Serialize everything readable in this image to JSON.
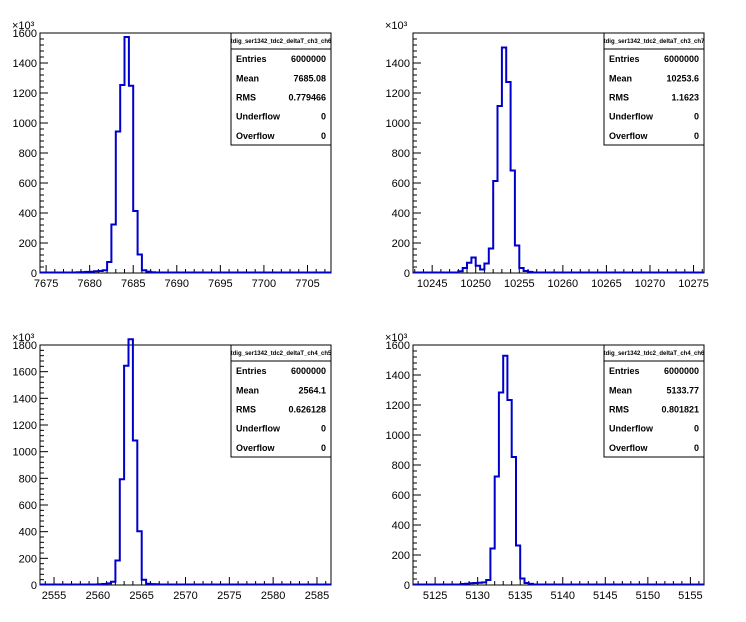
{
  "colors": {
    "line": "#0000cc",
    "axis": "#000000",
    "background": "#ffffff"
  },
  "chart_data": [
    {
      "type": "step-histogram",
      "exponent_label": "×10³",
      "stats_box": {
        "title": "tdig_ser1342_tdc2_deltaT_ch3_ch6",
        "rows": [
          {
            "label": "Entries",
            "value": "6000000"
          },
          {
            "label": "Mean",
            "value": "7685.08"
          },
          {
            "label": "RMS",
            "value": "0.779466"
          },
          {
            "label": "Underflow",
            "value": "0"
          },
          {
            "label": "Overflow",
            "value": "0"
          }
        ]
      },
      "xlim": [
        7674.3,
        7707.7
      ],
      "ylim": [
        0,
        1600
      ],
      "x_ticks": [
        7675,
        7680,
        7685,
        7690,
        7695,
        7700,
        7705
      ],
      "y_ticks": [
        0,
        200,
        400,
        600,
        800,
        1000,
        1200,
        1400,
        1600
      ],
      "x_minor_step": 1,
      "y_minor_step": 40,
      "bin_edges": [
        7678.5,
        7679.0,
        7679.5,
        7680.0,
        7680.5,
        7681.0,
        7681.5,
        7682.0,
        7682.5,
        7683.0,
        7683.5,
        7684.0,
        7684.5,
        7685.0,
        7685.5,
        7686.0,
        7686.5,
        7687.0,
        7687.5
      ],
      "counts": [
        2,
        3,
        4,
        5,
        8,
        10,
        15,
        70,
        320,
        940,
        1250,
        1570,
        1245,
        410,
        120,
        15,
        6,
        2
      ]
    },
    {
      "type": "step-histogram",
      "exponent_label": "×10³",
      "stats_box": {
        "title": "tdig_ser1342_tdc2_deltaT_ch3_ch7",
        "rows": [
          {
            "label": "Entries",
            "value": "6000000"
          },
          {
            "label": "Mean",
            "value": "10253.6"
          },
          {
            "label": "RMS",
            "value": "1.1623"
          },
          {
            "label": "Underflow",
            "value": "0"
          },
          {
            "label": "Overflow",
            "value": "0"
          }
        ]
      },
      "xlim": [
        10242.8,
        10276.2
      ],
      "ylim": [
        0,
        1600
      ],
      "x_ticks": [
        10245,
        10250,
        10255,
        10260,
        10265,
        10270,
        10275
      ],
      "y_ticks": [
        0,
        200,
        400,
        600,
        800,
        1000,
        1200,
        1400
      ],
      "x_minor_step": 1,
      "y_minor_step": 40,
      "bin_edges": [
        10248.0,
        10248.5,
        10249.0,
        10249.5,
        10250.0,
        10250.5,
        10251.0,
        10251.5,
        10252.0,
        10252.5,
        10253.0,
        10253.5,
        10254.0,
        10254.5,
        10255.0,
        10255.5,
        10256.0,
        10256.5
      ],
      "counts": [
        8,
        30,
        65,
        100,
        45,
        20,
        60,
        160,
        610,
        1110,
        1500,
        1270,
        680,
        180,
        30,
        10,
        4
      ]
    },
    {
      "type": "step-histogram",
      "exponent_label": "×10³",
      "stats_box": {
        "title": "tdig_ser1342_tdc2_deltaT_ch4_ch5",
        "rows": [
          {
            "label": "Entries",
            "value": "6000000"
          },
          {
            "label": "Mean",
            "value": "2564.1"
          },
          {
            "label": "RMS",
            "value": "0.626128"
          },
          {
            "label": "Underflow",
            "value": "0"
          },
          {
            "label": "Overflow",
            "value": "0"
          }
        ]
      },
      "xlim": [
        2553.4,
        2586.6
      ],
      "ylim": [
        0,
        1800
      ],
      "x_ticks": [
        2555,
        2560,
        2565,
        2570,
        2575,
        2580,
        2585
      ],
      "y_ticks": [
        0,
        200,
        400,
        600,
        800,
        1000,
        1200,
        1400,
        1600,
        1800
      ],
      "x_minor_step": 1,
      "y_minor_step": 40,
      "bin_edges": [
        2560.0,
        2560.5,
        2561.0,
        2561.5,
        2562.0,
        2562.5,
        2563.0,
        2563.5,
        2564.0,
        2564.5,
        2565.0,
        2565.5,
        2566.0,
        2566.5,
        2567.0
      ],
      "counts": [
        2,
        4,
        8,
        20,
        180,
        790,
        1640,
        1840,
        1080,
        400,
        35,
        6,
        3,
        2
      ]
    },
    {
      "type": "step-histogram",
      "exponent_label": "×10³",
      "stats_box": {
        "title": "tdig_ser1342_tdc2_deltaT_ch4_ch6",
        "rows": [
          {
            "label": "Entries",
            "value": "6000000"
          },
          {
            "label": "Mean",
            "value": "5133.77"
          },
          {
            "label": "RMS",
            "value": "0.801821"
          },
          {
            "label": "Underflow",
            "value": "0"
          },
          {
            "label": "Overflow",
            "value": "0"
          }
        ]
      },
      "xlim": [
        5122.4,
        5156.6
      ],
      "ylim": [
        0,
        1600
      ],
      "x_ticks": [
        5125,
        5130,
        5135,
        5140,
        5145,
        5150,
        5155
      ],
      "y_ticks": [
        0,
        200,
        400,
        600,
        800,
        1000,
        1200,
        1400,
        1600
      ],
      "x_minor_step": 1,
      "y_minor_step": 40,
      "bin_edges": [
        5128.0,
        5128.5,
        5129.0,
        5129.5,
        5130.0,
        5130.5,
        5131.0,
        5131.5,
        5132.0,
        5132.5,
        5133.0,
        5133.5,
        5134.0,
        5134.5,
        5135.0,
        5135.5,
        5136.0,
        5136.5
      ],
      "counts": [
        3,
        5,
        8,
        10,
        12,
        14,
        30,
        240,
        720,
        1280,
        1525,
        1230,
        850,
        260,
        40,
        10,
        4
      ]
    }
  ]
}
